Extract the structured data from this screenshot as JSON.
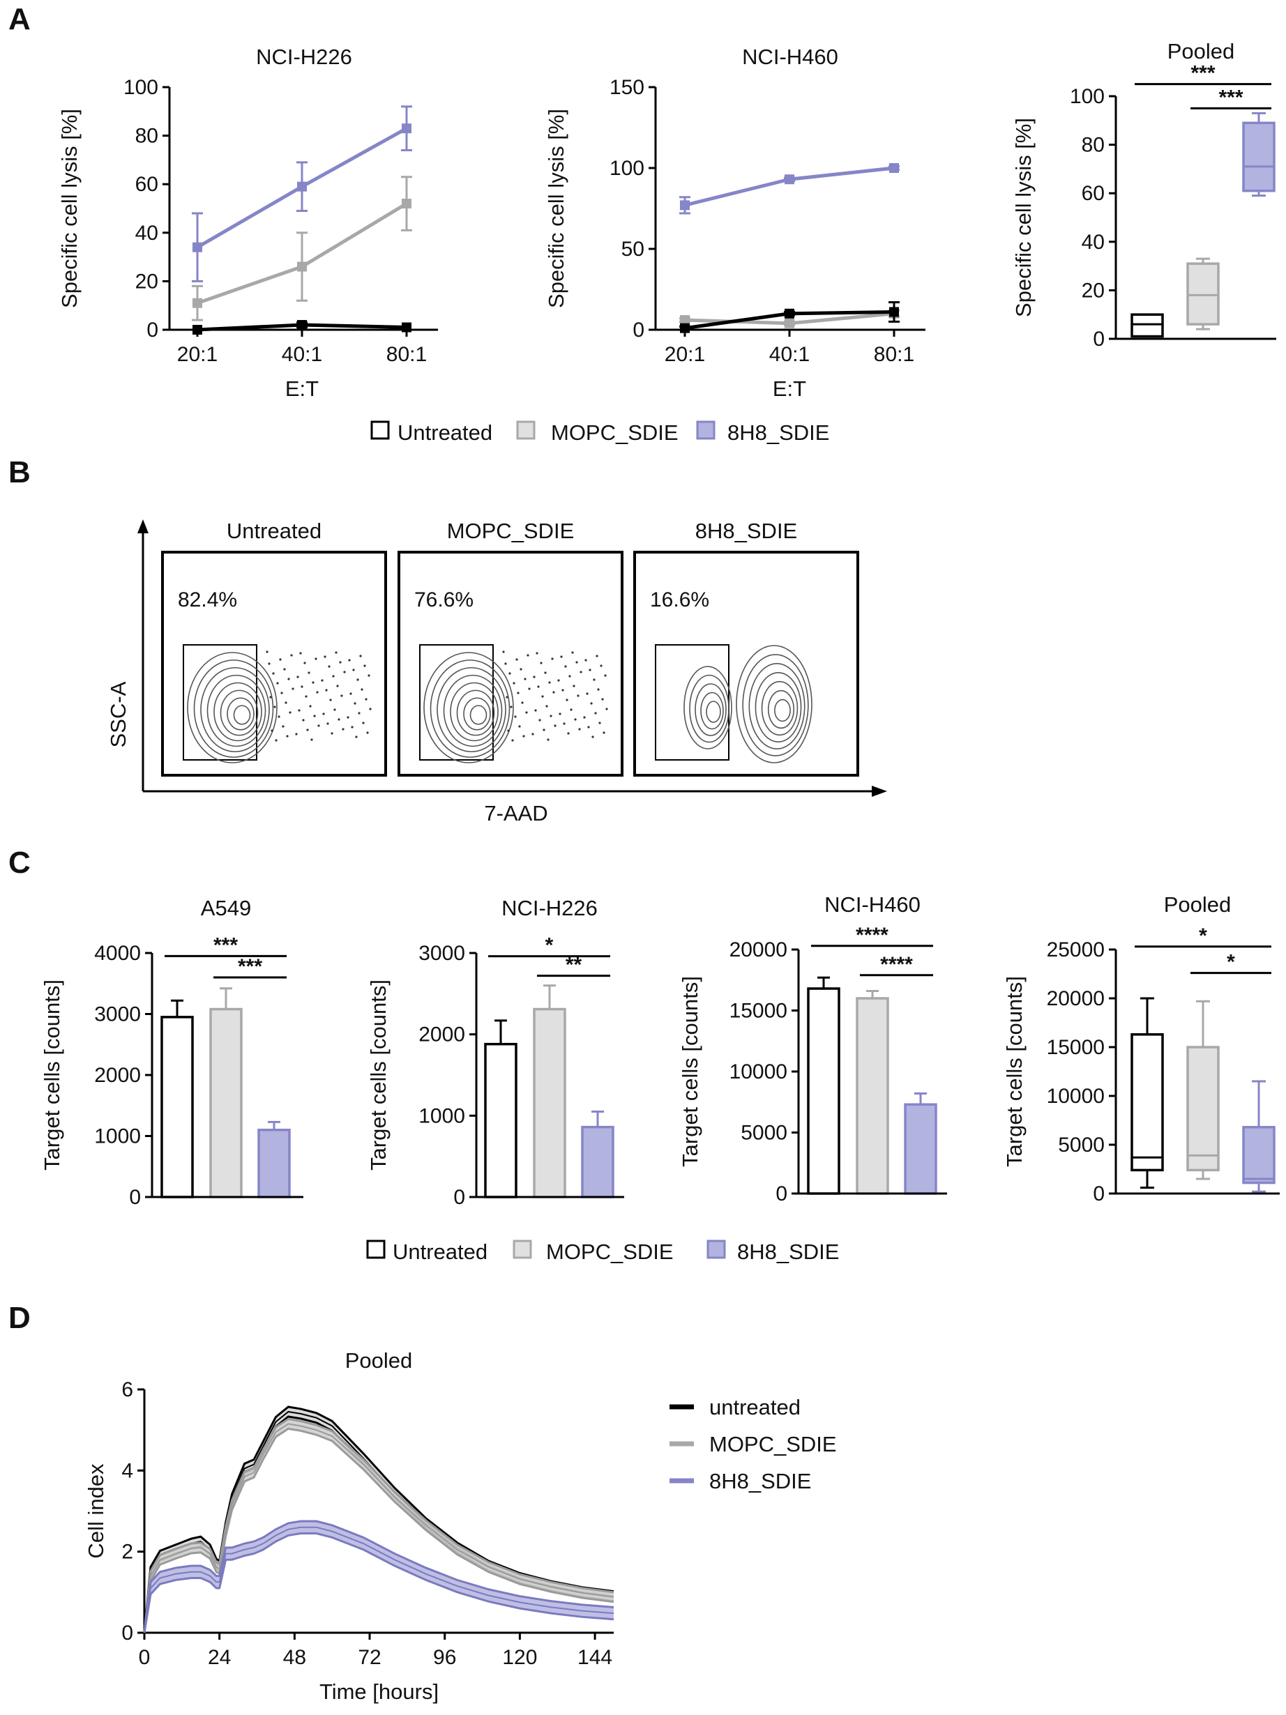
{
  "colors": {
    "untreated": "#000000",
    "mopc": "#a8a8a8",
    "h8": "#8585c8",
    "h8_fill": "#b3b3e0",
    "mopc_fill": "#e0e0e0"
  },
  "panels": {
    "A": {
      "letter": "A",
      "legend": [
        "Untreated",
        "MOPC_SDIE",
        "8H8_SDIE"
      ]
    },
    "B": {
      "letter": "B",
      "y_axis": "SSC-A",
      "x_axis": "7-AAD",
      "plots": [
        {
          "title": "Untreated",
          "percent": "82.4%"
        },
        {
          "title": "MOPC_SDIE",
          "percent": "76.6%"
        },
        {
          "title": "8H8_SDIE",
          "percent": "16.6%"
        }
      ]
    },
    "C": {
      "letter": "C",
      "legend": [
        "Untreated",
        "MOPC_SDIE",
        "8H8_SDIE"
      ]
    },
    "D": {
      "letter": "D",
      "legend": [
        "untreated",
        "MOPC_SDIE",
        "8H8_SDIE"
      ]
    }
  },
  "chart_data": [
    {
      "id": "A1",
      "type": "line",
      "title": "NCI-H226",
      "categories": [
        "20:1",
        "40:1",
        "80:1"
      ],
      "xlabel": "E:T",
      "ylabel": "Specific cell lysis [%]",
      "ylim": [
        0,
        100
      ],
      "yticks": [
        0,
        20,
        40,
        60,
        80,
        100
      ],
      "series": [
        {
          "name": "Untreated",
          "values": [
            0,
            2,
            1
          ],
          "errors": [
            0,
            1,
            0
          ]
        },
        {
          "name": "MOPC_SDIE",
          "values": [
            11,
            26,
            52
          ],
          "errors": [
            7,
            14,
            11
          ]
        },
        {
          "name": "8H8_SDIE",
          "values": [
            34,
            59,
            83
          ],
          "errors": [
            14,
            10,
            9
          ]
        }
      ]
    },
    {
      "id": "A2",
      "type": "line",
      "title": "NCI-H460",
      "categories": [
        "20:1",
        "40:1",
        "80:1"
      ],
      "xlabel": "E:T",
      "ylabel": "Specific cell lysis [%]",
      "ylim": [
        0,
        150
      ],
      "yticks": [
        0,
        50,
        100,
        150
      ],
      "series": [
        {
          "name": "Untreated",
          "values": [
            1,
            10,
            11
          ],
          "errors": [
            1,
            1,
            6
          ]
        },
        {
          "name": "MOPC_SDIE",
          "values": [
            6,
            4,
            10
          ],
          "errors": [
            1,
            1,
            2
          ]
        },
        {
          "name": "8H8_SDIE",
          "values": [
            77,
            93,
            100
          ],
          "errors": [
            5,
            1,
            1
          ]
        }
      ]
    },
    {
      "id": "A3",
      "type": "box",
      "title": "Pooled",
      "ylabel": "Specific cell lysis [%]",
      "ylim": [
        0,
        100
      ],
      "yticks": [
        0,
        20,
        40,
        60,
        80,
        100
      ],
      "boxes": [
        {
          "name": "Untreated",
          "min": 1,
          "q1": 1,
          "median": 6,
          "q3": 10,
          "max": 10
        },
        {
          "name": "MOPC_SDIE",
          "min": 4,
          "q1": 6,
          "median": 18,
          "q3": 31,
          "max": 33
        },
        {
          "name": "8H8_SDIE",
          "min": 59,
          "q1": 61,
          "median": 71,
          "q3": 89,
          "max": 93
        }
      ],
      "significance": [
        {
          "from": 0,
          "to": 2,
          "label": "***",
          "y": 105
        },
        {
          "from": 1,
          "to": 2,
          "label": "***",
          "y": 95
        }
      ]
    },
    {
      "id": "C1",
      "type": "bar",
      "title": "A549",
      "categories": [
        "Untreated",
        "MOPC_SDIE",
        "8H8_SDIE"
      ],
      "ylabel": "Target cells [counts]",
      "ylim": [
        0,
        4000
      ],
      "yticks": [
        0,
        1000,
        2000,
        3000,
        4000
      ],
      "values": [
        2950,
        3080,
        1100
      ],
      "errors": [
        270,
        340,
        130
      ],
      "significance": [
        {
          "from": 0,
          "to": 2,
          "label": "***",
          "y": 3950
        },
        {
          "from": 1,
          "to": 2,
          "label": "***",
          "y": 3600
        }
      ]
    },
    {
      "id": "C2",
      "type": "bar",
      "title": "NCI-H226",
      "categories": [
        "Untreated",
        "MOPC_SDIE",
        "8H8_SDIE"
      ],
      "ylabel": "Target cells [counts]",
      "ylim": [
        0,
        3000
      ],
      "yticks": [
        0,
        1000,
        2000,
        3000
      ],
      "values": [
        1880,
        2310,
        860
      ],
      "errors": [
        290,
        290,
        190
      ],
      "significance": [
        {
          "from": 0,
          "to": 2,
          "label": "*",
          "y": 2960
        },
        {
          "from": 1,
          "to": 2,
          "label": "**",
          "y": 2720
        }
      ]
    },
    {
      "id": "C3",
      "type": "bar",
      "title": "NCI-H460",
      "categories": [
        "Untreated",
        "MOPC_SDIE",
        "8H8_SDIE"
      ],
      "ylabel": "Target cells [counts]",
      "ylim": [
        0,
        20000
      ],
      "yticks": [
        0,
        5000,
        10000,
        15000,
        20000
      ],
      "values": [
        16800,
        16000,
        7300
      ],
      "errors": [
        900,
        600,
        900
      ],
      "significance": [
        {
          "from": 0,
          "to": 2,
          "label": "****",
          "y": 20300
        },
        {
          "from": 1,
          "to": 2,
          "label": "****",
          "y": 17900
        }
      ]
    },
    {
      "id": "C4",
      "type": "box",
      "title": "Pooled",
      "ylabel": "Target cells [counts]",
      "ylim": [
        0,
        25000
      ],
      "yticks": [
        0,
        5000,
        10000,
        15000,
        20000,
        25000
      ],
      "boxes": [
        {
          "name": "Untreated",
          "min": 600,
          "q1": 2400,
          "median": 3700,
          "q3": 16300,
          "max": 20000
        },
        {
          "name": "MOPC_SDIE",
          "min": 1500,
          "q1": 2400,
          "median": 3900,
          "q3": 15000,
          "max": 19700
        },
        {
          "name": "8H8_SDIE",
          "min": 200,
          "q1": 1100,
          "median": 1500,
          "q3": 6800,
          "max": 11500
        }
      ],
      "significance": [
        {
          "from": 0,
          "to": 2,
          "label": "*",
          "y": 25300
        },
        {
          "from": 1,
          "to": 2,
          "label": "*",
          "y": 22600
        }
      ]
    },
    {
      "id": "D1",
      "type": "area",
      "title": "Pooled",
      "xlabel": "Time [hours]",
      "ylabel": "Cell index",
      "xlim": [
        0,
        150
      ],
      "ylim": [
        0,
        6
      ],
      "xticks": [
        0,
        24,
        48,
        72,
        96,
        120,
        144
      ],
      "yticks": [
        0,
        2,
        4,
        6
      ],
      "x": [
        0,
        2,
        5,
        10,
        15,
        18,
        21,
        23,
        24,
        26,
        28,
        32,
        35,
        38,
        42,
        46,
        50,
        55,
        60,
        70,
        80,
        90,
        100,
        110,
        120,
        130,
        140,
        150
      ],
      "series": [
        {
          "name": "untreated",
          "band": 0.12,
          "values": [
            0,
            1.5,
            1.9,
            2.05,
            2.2,
            2.25,
            2.05,
            1.7,
            1.65,
            2.6,
            3.3,
            4.05,
            4.15,
            4.6,
            5.2,
            5.45,
            5.4,
            5.3,
            5.1,
            4.3,
            3.45,
            2.7,
            2.1,
            1.65,
            1.35,
            1.15,
            1.0,
            0.9
          ]
        },
        {
          "name": "MOPC_SDIE",
          "band": 0.12,
          "values": [
            0,
            1.4,
            1.8,
            1.95,
            2.08,
            2.1,
            1.95,
            1.62,
            1.58,
            2.5,
            3.15,
            3.85,
            3.95,
            4.4,
            4.95,
            5.15,
            5.1,
            5.0,
            4.85,
            4.15,
            3.35,
            2.65,
            2.05,
            1.62,
            1.32,
            1.13,
            0.98,
            0.88
          ]
        },
        {
          "name": "8H8_SDIE",
          "band": 0.15,
          "values": [
            0,
            1.1,
            1.35,
            1.45,
            1.5,
            1.5,
            1.4,
            1.25,
            1.25,
            1.95,
            1.95,
            2.05,
            2.1,
            2.2,
            2.4,
            2.55,
            2.6,
            2.6,
            2.5,
            2.2,
            1.8,
            1.45,
            1.15,
            0.92,
            0.75,
            0.63,
            0.54,
            0.48
          ]
        }
      ]
    }
  ]
}
